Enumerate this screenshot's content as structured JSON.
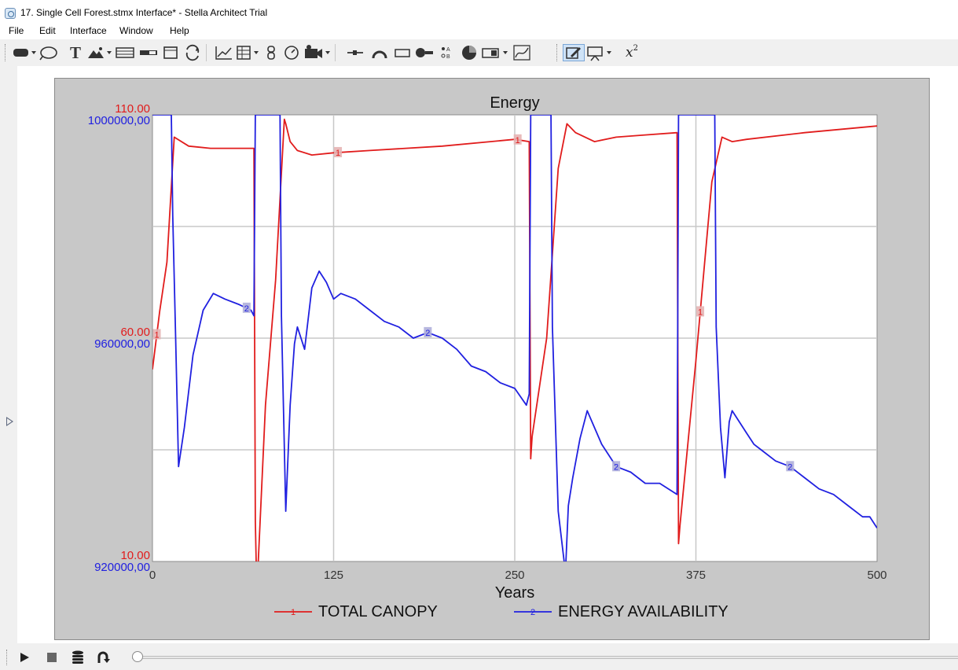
{
  "window": {
    "title": "17. Single Cell Forest.stmx Interface* - Stella Architect Trial"
  },
  "menu": {
    "items": [
      "File",
      "Edit",
      "Interface",
      "Window",
      "Help"
    ]
  },
  "toolbar": {
    "tools": [
      "button-tool-icon",
      "knob-tool-icon",
      "text-tool-icon",
      "image-tool-icon",
      "table-input-icon",
      "slider-tool-icon",
      "container-tool-icon",
      "loop-tool-icon",
      "graph-tool-icon",
      "table-tool-icon",
      "numeric-display-icon",
      "gauge-tool-icon",
      "camera-tool-icon",
      "arrow-tool-icon",
      "dial-tool-icon",
      "rectangle-tool-icon",
      "switch-tool-icon",
      "radio-group-icon",
      "pie-chart-icon",
      "list-input-icon",
      "graphical-input-icon",
      "edit-mode-icon",
      "presentation-icon",
      "equation-icon"
    ],
    "equation_label": "x"
  },
  "chart_data": {
    "type": "line",
    "title": "Energy",
    "xlabel": "Years",
    "xlim": [
      0,
      500
    ],
    "xticks": [
      0,
      125,
      250,
      375,
      500
    ],
    "xtick_labels": [
      "0",
      "125",
      "250",
      "375",
      "500"
    ],
    "axes": [
      {
        "series": 1,
        "color": "#e11c1c",
        "ylim": [
          10,
          110
        ],
        "ticks": [
          {
            "value": 110,
            "label": "110.00"
          },
          {
            "value": 60,
            "label": "60.00"
          },
          {
            "value": 10,
            "label": "10.00"
          }
        ]
      },
      {
        "series": 2,
        "color": "#2020e0",
        "ylim": [
          920000,
          1000000
        ],
        "ticks": [
          {
            "value": 1000000,
            "label": "1000000,00"
          },
          {
            "value": 960000,
            "label": "960000,00"
          },
          {
            "value": 920000,
            "label": "920000,00"
          }
        ]
      }
    ],
    "grid": true,
    "series": [
      {
        "name": "TOTAL CANOPY",
        "number": "1",
        "color": "#e11c1c",
        "axis": 0,
        "x": [
          0,
          5,
          10,
          15,
          25,
          40,
          70,
          71,
          72,
          78,
          85,
          91,
          92,
          95,
          100,
          110,
          125,
          150,
          200,
          250,
          260,
          261,
          262,
          272,
          280,
          286,
          292,
          305,
          320,
          340,
          362,
          363,
          364,
          375,
          386,
          393,
          400,
          410,
          450,
          500
        ],
        "y": [
          53,
          66,
          77,
          105,
          103,
          102.5,
          102.5,
          19,
          3,
          45,
          73,
          109,
          108,
          104,
          102,
          101,
          101.5,
          102,
          103,
          104.5,
          104,
          33,
          38,
          60,
          98,
          108,
          106,
          104,
          105,
          105.5,
          106,
          14,
          18,
          55,
          95,
          105,
          104,
          104.5,
          106,
          107.5
        ]
      },
      {
        "name": "ENERGY AVAILABILITY",
        "number": "2",
        "color": "#2020e0",
        "axis": 1,
        "x": [
          0,
          13,
          14,
          16,
          18,
          22,
          28,
          35,
          42,
          50,
          60,
          68,
          70,
          71,
          72,
          88,
          89,
          92,
          95,
          98,
          100,
          105,
          110,
          115,
          120,
          125,
          130,
          140,
          150,
          160,
          170,
          180,
          190,
          200,
          210,
          220,
          230,
          240,
          250,
          258,
          260,
          261,
          262,
          275,
          276,
          280,
          285,
          287,
          290,
          295,
          300,
          305,
          310,
          315,
          320,
          330,
          340,
          350,
          362,
          363,
          364,
          388,
          389,
          392,
          395,
          398,
          400,
          405,
          410,
          415,
          420,
          430,
          440,
          450,
          460,
          470,
          480,
          490,
          495,
          500
        ],
        "y": [
          1000000,
          1000000,
          982000,
          960000,
          937000,
          944000,
          957000,
          965000,
          968000,
          967000,
          966000,
          965000,
          964000,
          1000000,
          1000000,
          1000000,
          964000,
          929000,
          948000,
          959000,
          962000,
          958000,
          969000,
          972000,
          970000,
          967000,
          968000,
          967000,
          965000,
          963000,
          962000,
          960000,
          961000,
          960000,
          958000,
          955000,
          954000,
          952000,
          951000,
          948000,
          950000,
          1000000,
          1000000,
          1000000,
          962000,
          929000,
          918000,
          930000,
          935000,
          942000,
          947000,
          944000,
          941000,
          939000,
          937000,
          936000,
          934000,
          934000,
          932000,
          1000000,
          1000000,
          1000000,
          962000,
          944000,
          935000,
          945000,
          947000,
          945000,
          943000,
          941000,
          940000,
          938000,
          937000,
          935000,
          933000,
          932000,
          930000,
          928000,
          928000,
          926000
        ]
      }
    ]
  }
}
